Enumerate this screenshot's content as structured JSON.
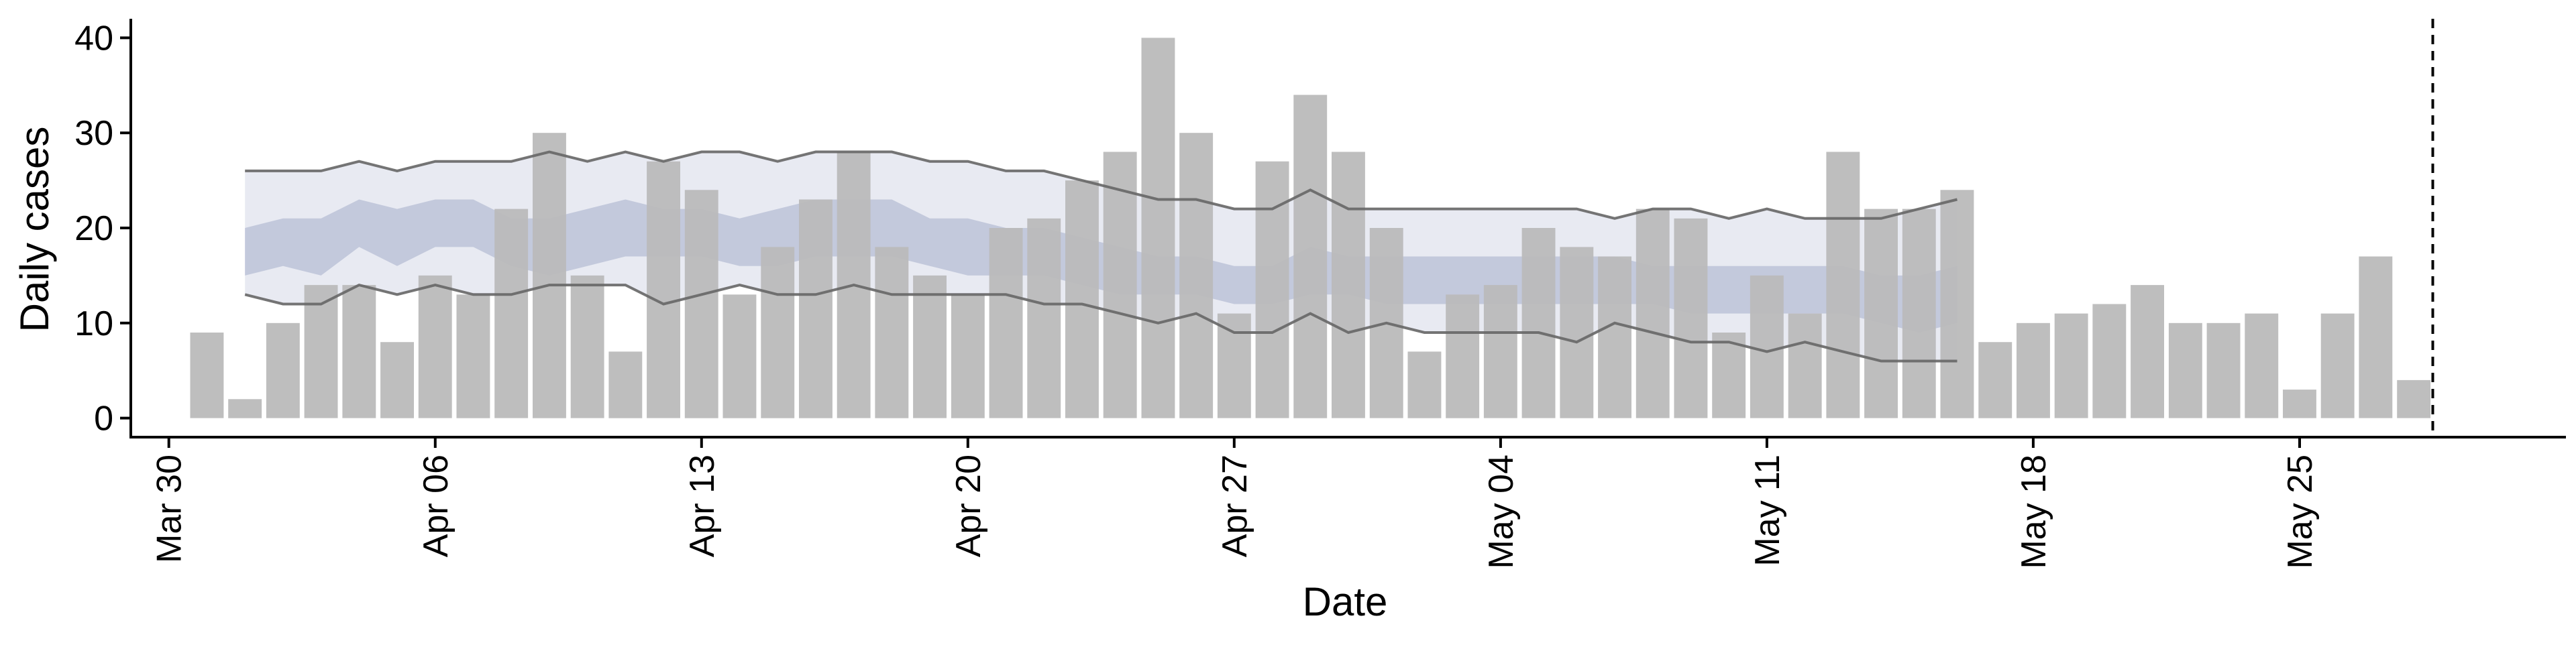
{
  "chart_data": {
    "type": "bar",
    "xlabel": "Date",
    "ylabel": "Daily cases",
    "ylim": [
      -2,
      42
    ],
    "yticks": [
      0,
      10,
      20,
      30,
      40
    ],
    "x_domain": [
      "2020-03-29",
      "2020-06-01"
    ],
    "xticks": [
      {
        "date": "2020-03-30",
        "label": "Mar 30"
      },
      {
        "date": "2020-04-06",
        "label": "Apr 06"
      },
      {
        "date": "2020-04-13",
        "label": "Apr 13"
      },
      {
        "date": "2020-04-20",
        "label": "Apr 20"
      },
      {
        "date": "2020-04-27",
        "label": "Apr 27"
      },
      {
        "date": "2020-05-04",
        "label": "May 04"
      },
      {
        "date": "2020-05-11",
        "label": "May 11"
      },
      {
        "date": "2020-05-18",
        "label": "May 18"
      },
      {
        "date": "2020-05-25",
        "label": "May 25"
      }
    ],
    "grid": false,
    "vline_date": "2020-05-28",
    "colors": {
      "bars": "#bababa",
      "band_outer": "#e8eaf2",
      "band_inner": "#c3c9dc",
      "bound_line": "#666666",
      "vline": "#000000"
    },
    "bars": {
      "start_date": "2020-03-31",
      "values": [
        9,
        2,
        10,
        14,
        14,
        8,
        15,
        13,
        22,
        30,
        15,
        7,
        27,
        24,
        13,
        18,
        23,
        28,
        18,
        15,
        13,
        20,
        21,
        25,
        28,
        40,
        30,
        11,
        27,
        34,
        28,
        20,
        7,
        13,
        14,
        20,
        18,
        17,
        22,
        21,
        9,
        15,
        11,
        28,
        22,
        22,
        24,
        8,
        10,
        11,
        12,
        14,
        10,
        10,
        11,
        3,
        11,
        17,
        4
      ]
    },
    "band": {
      "start_date": "2020-04-01",
      "upper_outer": [
        26,
        26,
        26,
        27,
        26,
        27,
        27,
        27,
        28,
        27,
        28,
        27,
        28,
        28,
        27,
        28,
        28,
        28,
        27,
        27,
        26,
        26,
        25,
        24,
        23,
        23,
        22,
        22,
        24,
        22,
        22,
        22,
        22,
        22,
        22,
        22,
        21,
        22,
        22,
        21,
        22,
        21,
        21,
        21,
        22,
        23
      ],
      "upper_inner": [
        20,
        21,
        21,
        23,
        22,
        23,
        23,
        21,
        21,
        22,
        23,
        22,
        22,
        21,
        22,
        23,
        23,
        23,
        21,
        21,
        20,
        20,
        19,
        18,
        17,
        17,
        16,
        16,
        18,
        17,
        17,
        17,
        17,
        17,
        17,
        17,
        17,
        16,
        16,
        16,
        16,
        16,
        16,
        15,
        15,
        16
      ],
      "lower_inner": [
        15,
        16,
        15,
        18,
        16,
        18,
        18,
        16,
        15,
        16,
        17,
        17,
        17,
        16,
        16,
        17,
        17,
        17,
        16,
        15,
        15,
        15,
        14,
        13,
        13,
        13,
        12,
        12,
        13,
        13,
        12,
        12,
        12,
        12,
        12,
        12,
        12,
        12,
        11,
        11,
        11,
        11,
        11,
        10,
        9,
        10
      ],
      "lower_outer": [
        13,
        12,
        12,
        14,
        13,
        14,
        13,
        13,
        14,
        14,
        14,
        12,
        13,
        14,
        13,
        13,
        14,
        13,
        13,
        13,
        13,
        12,
        12,
        11,
        10,
        11,
        9,
        9,
        11,
        9,
        10,
        9,
        9,
        9,
        9,
        8,
        10,
        9,
        8,
        8,
        7,
        8,
        7,
        6,
        6,
        6
      ]
    }
  }
}
